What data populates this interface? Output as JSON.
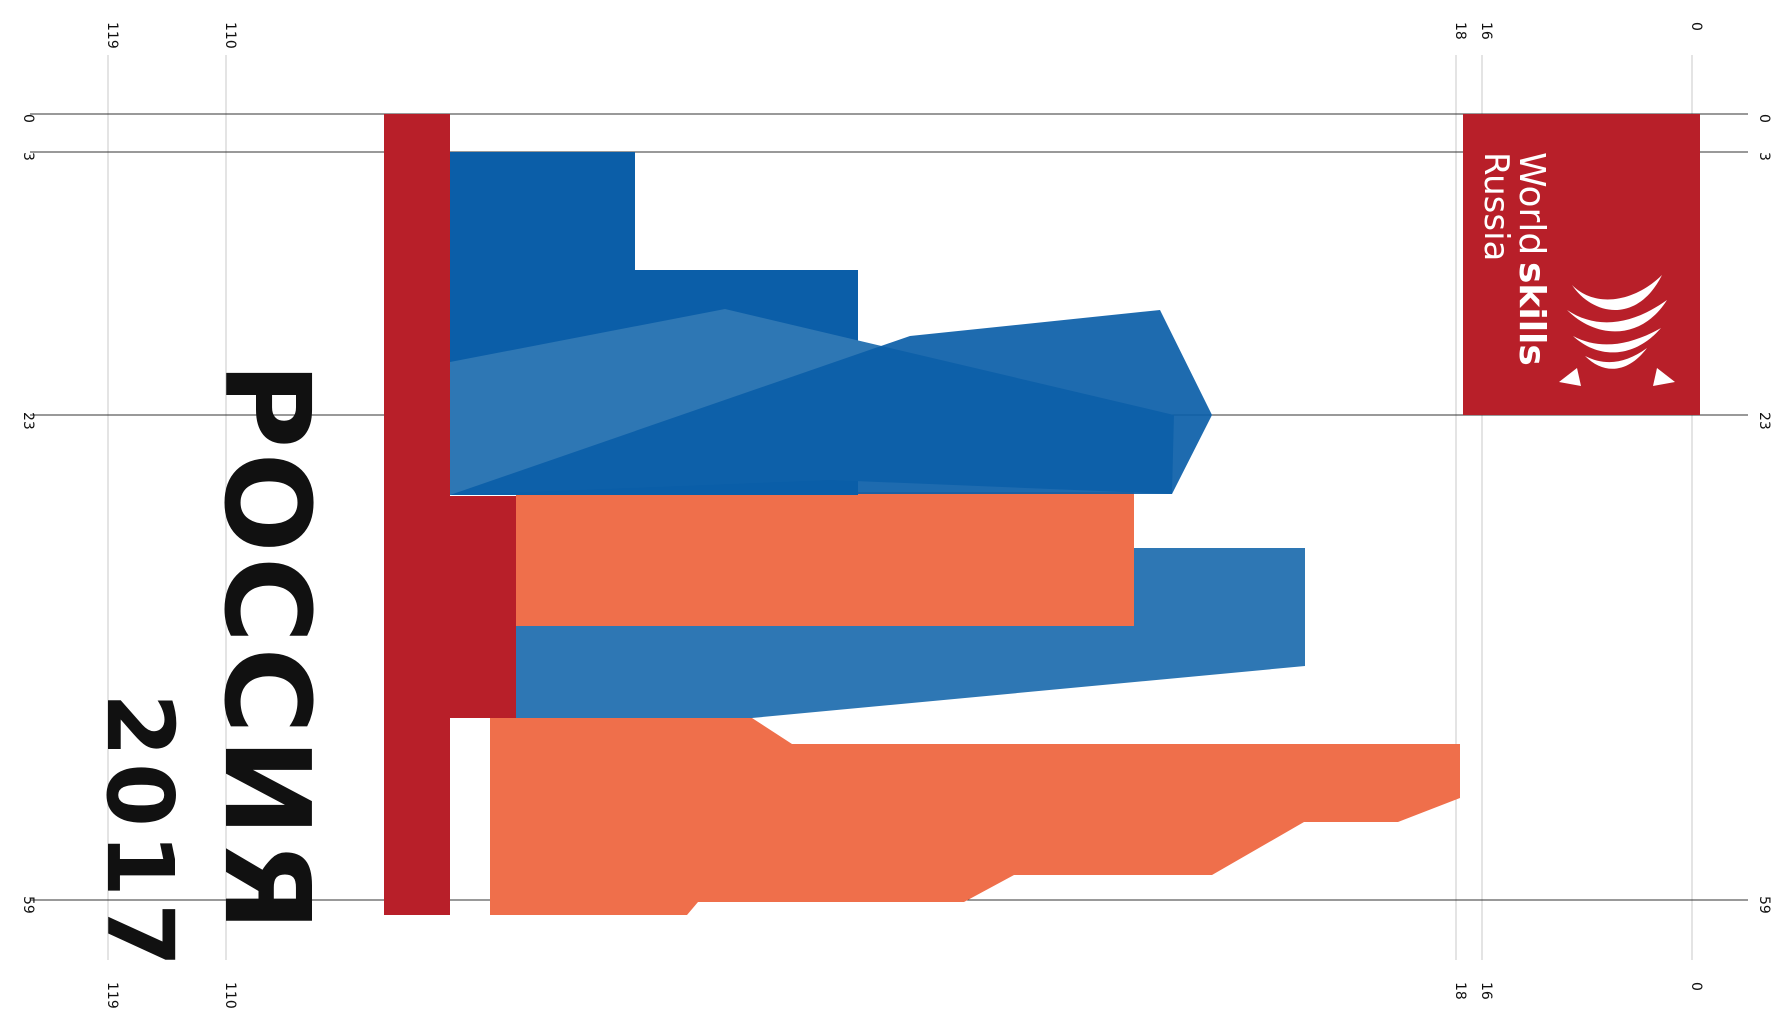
{
  "colors": {
    "red": "#b81f29",
    "blue_dark": "#0b5ea8",
    "blue_light": "#2e77b4",
    "orange": "#ef6f4b",
    "guide_strong": "#333333",
    "guide_light": "#c8c8c8",
    "background": "#ffffff"
  },
  "guides": {
    "top_labels": [
      "0",
      "16",
      "18",
      "110",
      "119"
    ],
    "side_labels": [
      "0",
      "3",
      "23",
      "59"
    ]
  },
  "logo": {
    "word_regular": "World",
    "word_bold": "skills",
    "word_country": "Russia",
    "emblem_icon": "worldskills-emblem-icon"
  },
  "title": {
    "country": "РОССИЯ",
    "year": "2017"
  }
}
